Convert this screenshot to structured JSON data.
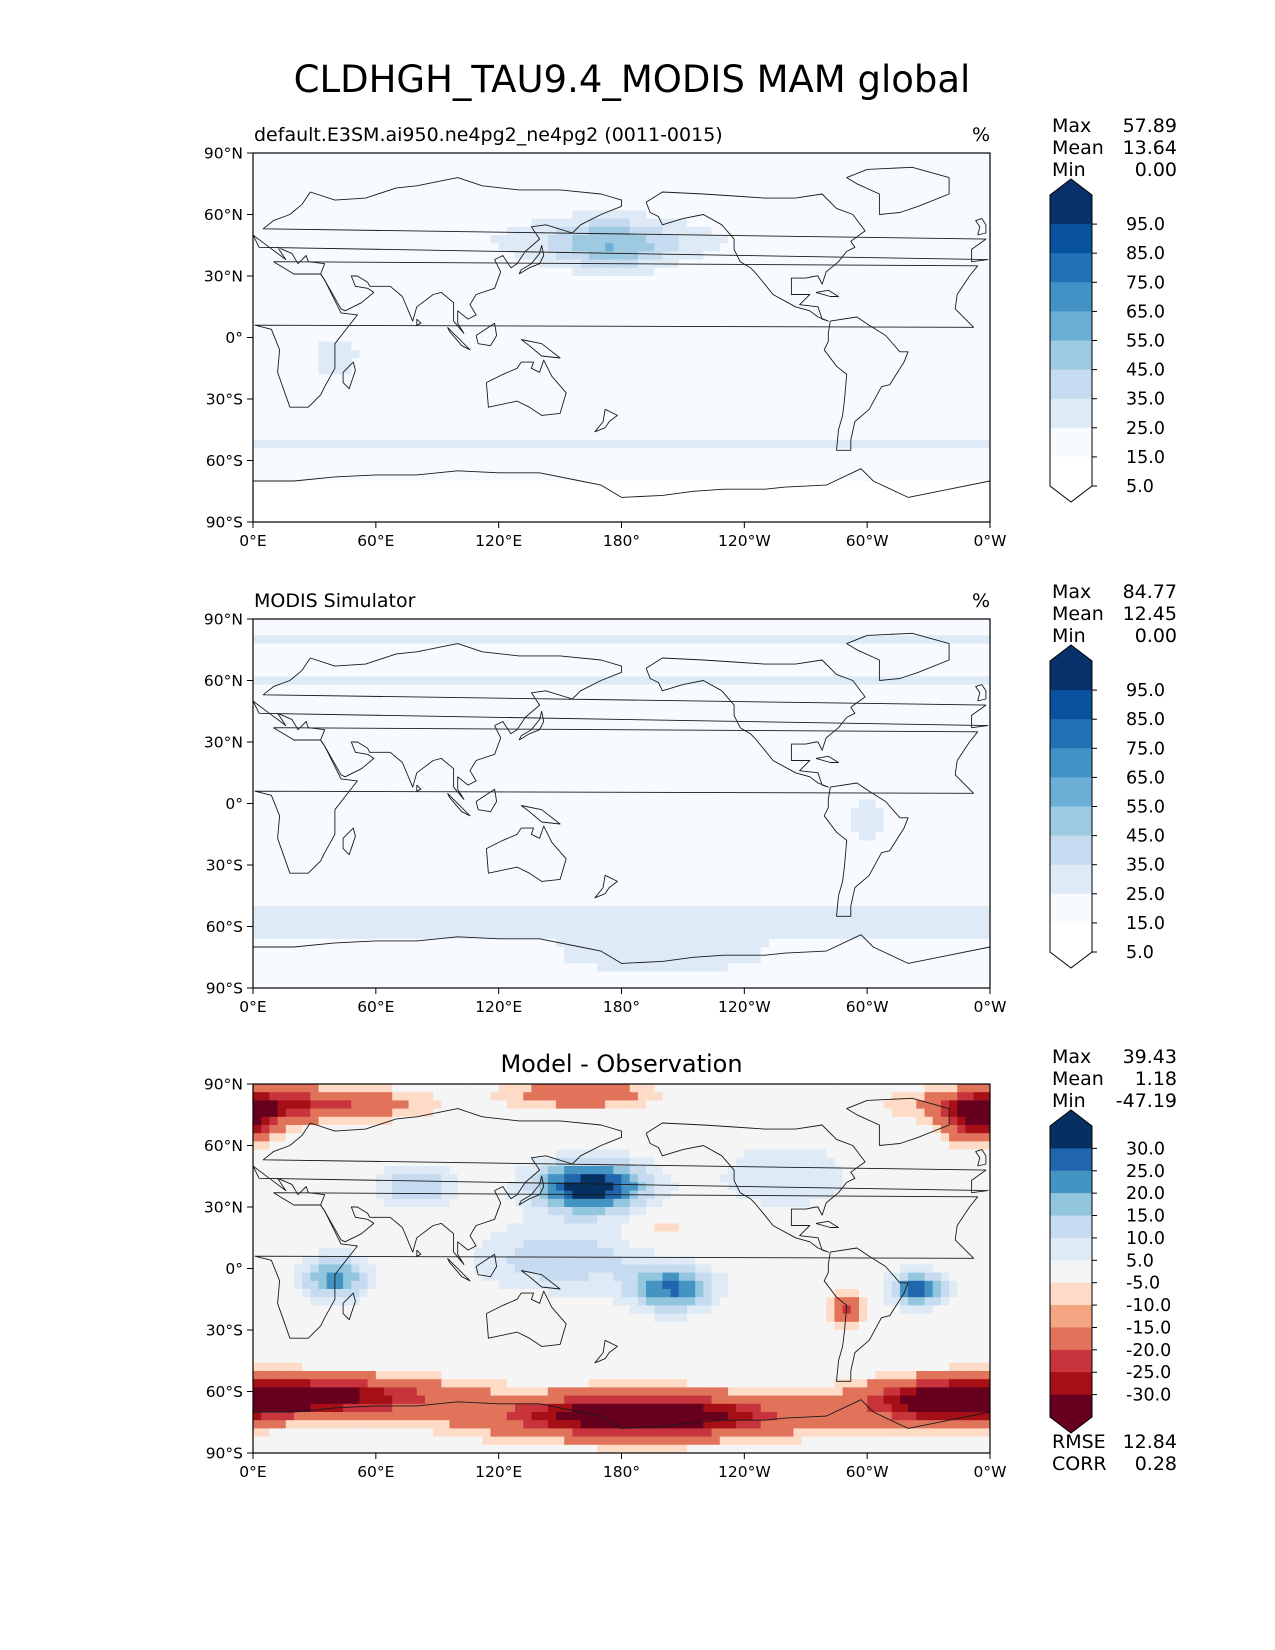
{
  "figure": {
    "title": "CLDHGH_TAU9.4_MODIS MAM global"
  },
  "axes": {
    "lat_ticks": [
      "90°N",
      "60°N",
      "30°N",
      "0°",
      "30°S",
      "60°S",
      "90°S"
    ],
    "lon_ticks": [
      "0°E",
      "60°E",
      "120°E",
      "180°",
      "120°W",
      "60°W",
      "0°W"
    ]
  },
  "panels": [
    {
      "title": "default.E3SM.ai950.ne4pg2_ne4pg2 (0011-0015)",
      "units": "%",
      "stats": [
        {
          "label": "Max",
          "value": "57.89"
        },
        {
          "label": "Mean",
          "value": "13.64"
        },
        {
          "label": "Min",
          "value": "0.00"
        }
      ],
      "colorbar_labels": [
        "95.0",
        "85.0",
        "75.0",
        "65.0",
        "55.0",
        "45.0",
        "35.0",
        "25.0",
        "15.0",
        "5.0"
      ]
    },
    {
      "title": "MODIS Simulator",
      "units": "%",
      "stats": [
        {
          "label": "Max",
          "value": "84.77"
        },
        {
          "label": "Mean",
          "value": "12.45"
        },
        {
          "label": "Min",
          "value": "0.00"
        }
      ],
      "colorbar_labels": [
        "95.0",
        "85.0",
        "75.0",
        "65.0",
        "55.0",
        "45.0",
        "35.0",
        "25.0",
        "15.0",
        "5.0"
      ]
    },
    {
      "title": "Model - Observation",
      "units": "",
      "stats": [
        {
          "label": "Max",
          "value": "39.43"
        },
        {
          "label": "Mean",
          "value": "1.18"
        },
        {
          "label": "Min",
          "value": "-47.19"
        }
      ],
      "colorbar_labels": [
        "30.0",
        "25.0",
        "20.0",
        "15.0",
        "10.0",
        "5.0",
        "-5.0",
        "-10.0",
        "-15.0",
        "-20.0",
        "-25.0",
        "-30.0"
      ],
      "extra_stats": [
        {
          "label": "RMSE",
          "value": "12.84"
        },
        {
          "label": "CORR",
          "value": "0.28"
        }
      ]
    }
  ],
  "colors": {
    "blues": [
      "#ffffff",
      "#f7fbff",
      "#deebf7",
      "#c6dbef",
      "#9ecae1",
      "#6baed6",
      "#4292c6",
      "#2171b5",
      "#08519c",
      "#08306b"
    ],
    "diff": [
      "#67001f",
      "#a50f15",
      "#c7343b",
      "#e0735a",
      "#f4a582",
      "#fddbc7",
      "#f5f5f5",
      "#deebf7",
      "#c6dbef",
      "#92c5de",
      "#4393c3",
      "#2166ac",
      "#053061"
    ]
  }
}
